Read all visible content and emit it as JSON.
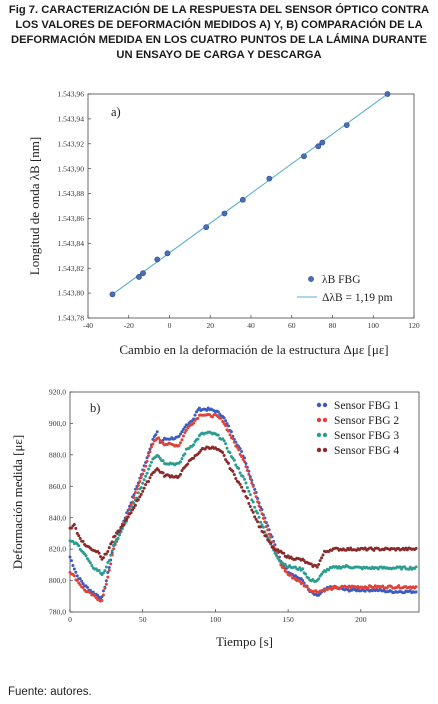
{
  "caption": "Fig 7. CARACTERIZACIÓN DE LA RESPUESTA DEL SENSOR ÓPTICO CONTRA LOS VALORES DE DEFORMACIÓN MEDIDOS A) Y, B) COMPARACIÓN DE LA DEFORMACIÓN MEDIDA EN LOS CUATRO PUNTOS DE LA LÁMINA DURANTE UN ENSAYO DE CARGA Y DESCARGA",
  "source": "Fuente: autores.",
  "chart_data": [
    {
      "type": "scatter",
      "panel_label": "a)",
      "xlabel": "Cambio en la deformación de la estructura Δμε [με]",
      "ylabel": "Longitud de onda λB [nm]",
      "xlim": [
        -40,
        120
      ],
      "ylim": [
        1543.78,
        1543.96
      ],
      "xticks": [
        "-40",
        "-20",
        "0",
        "20",
        "40",
        "60",
        "80",
        "100",
        "120"
      ],
      "yticks": [
        "1.543,78",
        "1.543,80",
        "1.543,82",
        "1.543,84",
        "1.543,86",
        "1.543,88",
        "1.543,90",
        "1.543,92",
        "1.543,94",
        "1.543,96"
      ],
      "grid": false,
      "legend_position": "bottom-right",
      "series": [
        {
          "name": "λB FBG",
          "kind": "points",
          "color": "#4a6fb5",
          "x": [
            -28,
            -15,
            -13,
            -6,
            -1,
            18,
            27,
            36,
            49,
            66,
            73,
            75,
            87,
            107
          ],
          "y": [
            1543.799,
            1543.813,
            1543.816,
            1543.827,
            1543.832,
            1543.853,
            1543.864,
            1543.875,
            1543.892,
            1543.91,
            1543.918,
            1543.921,
            1543.935,
            1543.96
          ]
        },
        {
          "name": "ΔλB = 1,19 pm",
          "kind": "line",
          "color": "#5aaed0",
          "x": [
            -28,
            107
          ],
          "y": [
            1543.799,
            1543.96
          ]
        }
      ]
    },
    {
      "type": "scatter",
      "panel_label": "b)",
      "xlabel": "Tiempo [s]",
      "ylabel": "Deformación medida [με]",
      "xlim": [
        0,
        240
      ],
      "ylim": [
        780,
        920
      ],
      "xticks": [
        "0",
        "50",
        "100",
        "150",
        "200"
      ],
      "yticks": [
        "780,0",
        "800,0",
        "820,0",
        "840,0",
        "860,0",
        "880,0",
        "900,0",
        "920,0"
      ],
      "grid": false,
      "legend_position": "top-right",
      "series": [
        {
          "name": "Sensor FBG 1",
          "color": "#3a5bbf",
          "keypoints": [
            [
              0,
              815
            ],
            [
              5,
              803
            ],
            [
              10,
              797
            ],
            [
              15,
              793
            ],
            [
              20,
              790
            ],
            [
              22,
              789
            ],
            [
              25,
              800
            ],
            [
              30,
              822
            ],
            [
              40,
              845
            ],
            [
              50,
              870
            ],
            [
              57,
              890
            ],
            [
              60,
              894
            ],
            [
              62,
              888
            ],
            [
              65,
              890
            ],
            [
              75,
              891
            ],
            [
              80,
              899
            ],
            [
              85,
              903
            ],
            [
              88,
              909
            ],
            [
              95,
              909
            ],
            [
              100,
              908
            ],
            [
              105,
              905
            ],
            [
              110,
              896
            ],
            [
              120,
              878
            ],
            [
              130,
              850
            ],
            [
              140,
              825
            ],
            [
              145,
              812
            ],
            [
              150,
              806
            ],
            [
              160,
              800
            ],
            [
              165,
              793
            ],
            [
              170,
              790
            ],
            [
              175,
              794
            ],
            [
              180,
              796
            ],
            [
              190,
              794
            ],
            [
              200,
              794
            ],
            [
              210,
              794
            ],
            [
              220,
              793
            ],
            [
              230,
              793
            ],
            [
              238,
              793
            ]
          ]
        },
        {
          "name": "Sensor FBG 2",
          "color": "#e0423a",
          "keypoints": [
            [
              0,
              806
            ],
            [
              5,
              800
            ],
            [
              10,
              794
            ],
            [
              15,
              791
            ],
            [
              20,
              788
            ],
            [
              22,
              787
            ],
            [
              25,
              798
            ],
            [
              30,
              820
            ],
            [
              40,
              843
            ],
            [
              50,
              868
            ],
            [
              57,
              887
            ],
            [
              60,
              891
            ],
            [
              65,
              887
            ],
            [
              75,
              886
            ],
            [
              80,
              896
            ],
            [
              85,
              901
            ],
            [
              90,
              906
            ],
            [
              95,
              905
            ],
            [
              100,
              905
            ],
            [
              105,
              902
            ],
            [
              110,
              893
            ],
            [
              120,
              876
            ],
            [
              130,
              848
            ],
            [
              140,
              822
            ],
            [
              145,
              810
            ],
            [
              150,
              804
            ],
            [
              160,
              798
            ],
            [
              165,
              794
            ],
            [
              170,
              793
            ],
            [
              180,
              795
            ],
            [
              190,
              796
            ],
            [
              200,
              796
            ],
            [
              210,
              796
            ],
            [
              220,
              796
            ],
            [
              230,
              796
            ],
            [
              238,
              796
            ]
          ]
        },
        {
          "name": "Sensor FBG 3",
          "color": "#2a9d8f",
          "keypoints": [
            [
              0,
              825
            ],
            [
              5,
              823
            ],
            [
              10,
              817
            ],
            [
              15,
              809
            ],
            [
              20,
              806
            ],
            [
              22,
              804
            ],
            [
              25,
              808
            ],
            [
              30,
              822
            ],
            [
              40,
              840
            ],
            [
              50,
              862
            ],
            [
              57,
              878
            ],
            [
              60,
              880
            ],
            [
              65,
              875
            ],
            [
              75,
              874
            ],
            [
              80,
              883
            ],
            [
              85,
              887
            ],
            [
              90,
              893
            ],
            [
              95,
              894
            ],
            [
              100,
              893
            ],
            [
              105,
              890
            ],
            [
              110,
              881
            ],
            [
              120,
              864
            ],
            [
              130,
              840
            ],
            [
              140,
              819
            ],
            [
              145,
              812
            ],
            [
              150,
              809
            ],
            [
              160,
              807
            ],
            [
              165,
              800
            ],
            [
              170,
              800
            ],
            [
              175,
              806
            ],
            [
              180,
              808
            ],
            [
              190,
              809
            ],
            [
              200,
              808
            ],
            [
              210,
              808
            ],
            [
              220,
              808
            ],
            [
              230,
              808
            ],
            [
              238,
              808
            ]
          ]
        },
        {
          "name": "Sensor FBG 4",
          "color": "#8b2a2a",
          "keypoints": [
            [
              0,
              833
            ],
            [
              3,
              836
            ],
            [
              5,
              830
            ],
            [
              10,
              823
            ],
            [
              15,
              820
            ],
            [
              20,
              818
            ],
            [
              22,
              814
            ],
            [
              25,
              817
            ],
            [
              30,
              827
            ],
            [
              40,
              840
            ],
            [
              50,
              857
            ],
            [
              57,
              869
            ],
            [
              60,
              871
            ],
            [
              65,
              867
            ],
            [
              75,
              866
            ],
            [
              80,
              874
            ],
            [
              85,
              878
            ],
            [
              90,
              883
            ],
            [
              95,
              885
            ],
            [
              100,
              884
            ],
            [
              105,
              881
            ],
            [
              110,
              872
            ],
            [
              120,
              856
            ],
            [
              130,
              835
            ],
            [
              140,
              820
            ],
            [
              145,
              818
            ],
            [
              150,
              815
            ],
            [
              160,
              813
            ],
            [
              165,
              810
            ],
            [
              170,
              809
            ],
            [
              175,
              818
            ],
            [
              180,
              820
            ],
            [
              190,
              820
            ],
            [
              200,
              820
            ],
            [
              210,
              820
            ],
            [
              220,
              820
            ],
            [
              230,
              820
            ],
            [
              238,
              820
            ]
          ]
        }
      ]
    }
  ]
}
